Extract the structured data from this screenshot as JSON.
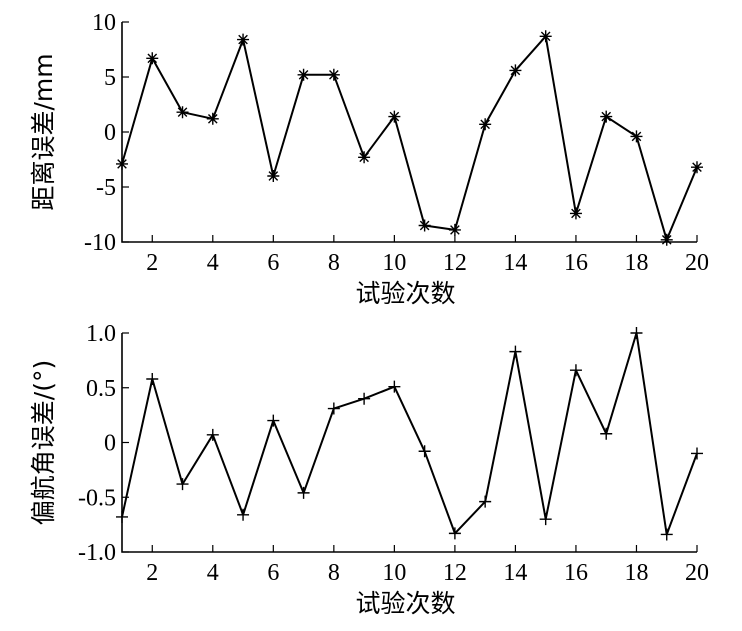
{
  "chart_data": [
    {
      "type": "line",
      "marker": "asterisk",
      "xlabel": "试验次数",
      "ylabel": "距离误差/mm",
      "xlim": [
        1,
        20
      ],
      "ylim": [
        -10,
        10
      ],
      "xticks": [
        2,
        4,
        6,
        8,
        10,
        12,
        14,
        16,
        18,
        20
      ],
      "yticks": [
        -10,
        -5,
        0,
        5,
        10
      ],
      "x": [
        1,
        2,
        3,
        4,
        5,
        6,
        7,
        8,
        9,
        10,
        11,
        12,
        13,
        14,
        15,
        16,
        17,
        18,
        19,
        20
      ],
      "values": [
        -2.9,
        6.7,
        1.8,
        1.2,
        8.4,
        -4.0,
        5.2,
        5.2,
        -2.3,
        1.4,
        -8.5,
        -8.9,
        0.7,
        5.6,
        8.7,
        -7.4,
        1.4,
        -0.4,
        -9.8,
        -3.2
      ],
      "grid": false
    },
    {
      "type": "line",
      "marker": "plus",
      "xlabel": "试验次数",
      "ylabel": "偏航角误差/(°)",
      "xlim": [
        1,
        20
      ],
      "ylim": [
        -1.0,
        1.0
      ],
      "xticks": [
        2,
        4,
        6,
        8,
        10,
        12,
        14,
        16,
        18,
        20
      ],
      "yticks": [
        -1.0,
        -0.5,
        0,
        0.5,
        1.0
      ],
      "ytick_labels": [
        "-1.0",
        "-0.5",
        "0",
        "0.5",
        "1.0"
      ],
      "x": [
        1,
        2,
        3,
        4,
        5,
        6,
        7,
        8,
        9,
        10,
        11,
        12,
        13,
        14,
        15,
        16,
        17,
        18,
        19,
        20
      ],
      "values": [
        -0.68,
        0.58,
        -0.38,
        0.07,
        -0.66,
        0.2,
        -0.46,
        0.31,
        0.4,
        0.51,
        -0.08,
        -0.83,
        -0.54,
        0.83,
        -0.7,
        0.66,
        0.08,
        1.0,
        -0.84,
        -0.1
      ],
      "grid": false
    }
  ]
}
